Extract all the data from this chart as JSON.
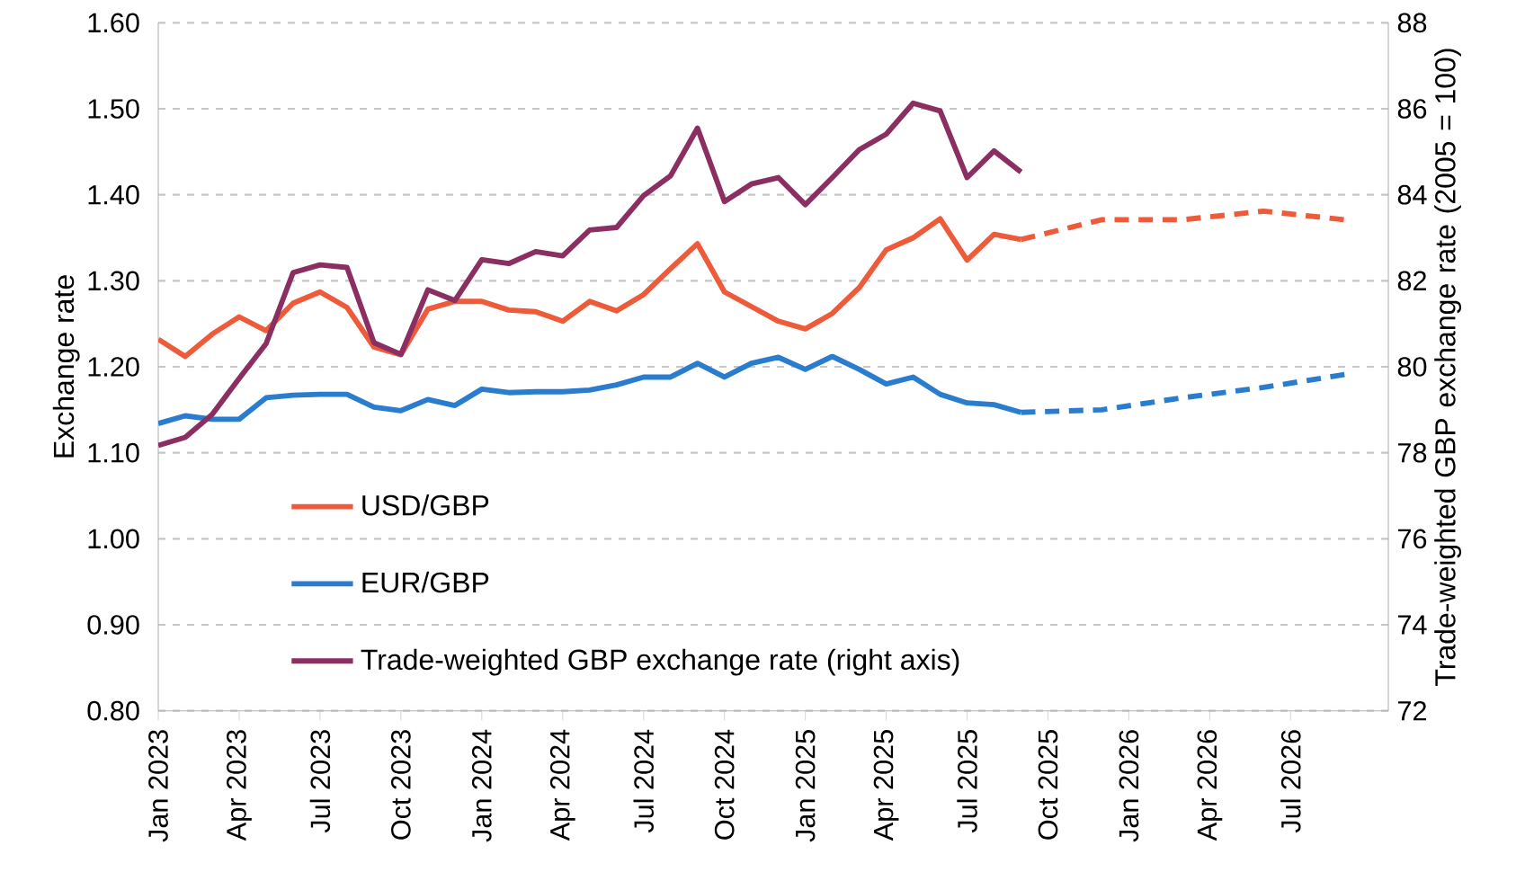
{
  "chart_data": {
    "type": "line",
    "ylabel": "Exchange rate",
    "y2label": "Trade-weighted GBP exchange rate (2005 = 100)",
    "ylim": [
      0.8,
      1.6
    ],
    "yticks": [
      {
        "value": 0.8,
        "label": "0.80"
      },
      {
        "value": 0.9,
        "label": "0.90"
      },
      {
        "value": 1.0,
        "label": "1.00"
      },
      {
        "value": 1.1,
        "label": "1.10"
      },
      {
        "value": 1.2,
        "label": "1.20"
      },
      {
        "value": 1.3,
        "label": "1.30"
      },
      {
        "value": 1.4,
        "label": "1.40"
      },
      {
        "value": 1.5,
        "label": "1.50"
      },
      {
        "value": 1.6,
        "label": "1.60"
      }
    ],
    "y2lim": [
      72,
      88
    ],
    "y2ticks": [
      72,
      74,
      76,
      78,
      80,
      82,
      84,
      86,
      88
    ],
    "xlim": [
      "2023-01",
      "2026-10-20"
    ],
    "xticks": [
      {
        "value": "2023-01",
        "label": "Jan 2023"
      },
      {
        "value": "2023-04",
        "label": "Apr 2023"
      },
      {
        "value": "2023-07",
        "label": "Jul 2023"
      },
      {
        "value": "2023-10",
        "label": "Oct 2023"
      },
      {
        "value": "2024-01",
        "label": "Jan 2024"
      },
      {
        "value": "2024-04",
        "label": "Apr 2024"
      },
      {
        "value": "2024-07",
        "label": "Jul 2024"
      },
      {
        "value": "2024-10",
        "label": "Oct 2024"
      },
      {
        "value": "2025-01",
        "label": "Jan 2025"
      },
      {
        "value": "2025-04",
        "label": "Apr 2025"
      },
      {
        "value": "2025-07",
        "label": "Jul 2025"
      },
      {
        "value": "2025-10",
        "label": "Oct 2025"
      },
      {
        "value": "2026-01",
        "label": "Jan 2026"
      },
      {
        "value": "2026-04",
        "label": "Apr 2026"
      },
      {
        "value": "2026-07",
        "label": "Jul 2026"
      }
    ],
    "x": [
      "2023-01",
      "2023-02",
      "2023-03",
      "2023-04",
      "2023-05",
      "2023-06",
      "2023-07",
      "2023-08",
      "2023-09",
      "2023-10",
      "2023-11",
      "2023-12",
      "2024-01",
      "2024-02",
      "2024-03",
      "2024-04",
      "2024-05",
      "2024-06",
      "2024-07",
      "2024-08",
      "2024-09",
      "2024-10",
      "2024-11",
      "2024-12",
      "2025-01",
      "2025-02",
      "2025-03",
      "2025-04",
      "2025-05",
      "2025-06",
      "2025-07",
      "2025-08",
      "2025-09"
    ],
    "grid": "y",
    "legend": "bottom left",
    "marker": "none",
    "series": [
      {
        "name": "USD/GBP",
        "color": "#ee5b3a",
        "line_style": "solid",
        "values": [
          1.232,
          1.212,
          1.238,
          1.258,
          1.242,
          1.274,
          1.287,
          1.269,
          1.223,
          1.214,
          1.267,
          1.276,
          1.276,
          1.266,
          1.264,
          1.253,
          1.276,
          1.265,
          1.284,
          1.314,
          1.343,
          1.287,
          1.27,
          1.253,
          1.244,
          1.262,
          1.292,
          1.336,
          1.35,
          1.372,
          1.324,
          1.354,
          1.348
        ]
      },
      {
        "name": "EUR/GBP",
        "color": "#2a7ccf",
        "line_style": "solid",
        "values": [
          1.134,
          1.143,
          1.139,
          1.139,
          1.164,
          1.167,
          1.168,
          1.168,
          1.153,
          1.149,
          1.162,
          1.155,
          1.174,
          1.17,
          1.171,
          1.171,
          1.173,
          1.179,
          1.188,
          1.188,
          1.204,
          1.188,
          1.204,
          1.211,
          1.197,
          1.212,
          1.197,
          1.18,
          1.188,
          1.168,
          1.158,
          1.156,
          1.147
        ]
      },
      {
        "name": "Trade-weighted GBP exchange rate (right axis)",
        "color": "#8b2e62",
        "line_style": "solid",
        "axis": "y2",
        "values": [
          78.17,
          78.36,
          78.89,
          79.73,
          80.54,
          82.19,
          82.37,
          82.31,
          80.56,
          80.29,
          81.79,
          81.54,
          82.49,
          82.4,
          82.68,
          82.58,
          83.18,
          83.24,
          83.98,
          84.44,
          85.55,
          83.84,
          84.25,
          84.4,
          83.77,
          84.4,
          85.05,
          85.41,
          86.13,
          85.95,
          84.4,
          85.02,
          84.53
        ]
      },
      {
        "color": "#ee5b3a",
        "line_style": "dashed",
        "x": [
          "2025-09",
          "2025-12",
          "2026-03",
          "2026-06",
          "2026-09"
        ],
        "values": [
          1.348,
          1.371,
          1.371,
          1.381,
          1.371
        ]
      },
      {
        "color": "#2a7ccf",
        "line_style": "dashed",
        "x": [
          "2025-09",
          "2025-12",
          "2026-03",
          "2026-06",
          "2026-09"
        ],
        "values": [
          1.147,
          1.15,
          1.164,
          1.176,
          1.191
        ]
      }
    ]
  }
}
